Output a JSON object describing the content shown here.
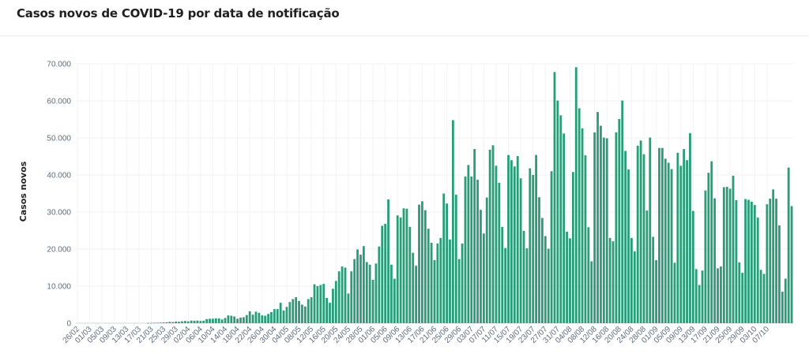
{
  "header": {
    "title": "Casos novos de COVID-19 por data de notificação"
  },
  "chart_data": {
    "type": "bar",
    "title": "Casos novos de COVID-19 por data de notificação",
    "xlabel": "",
    "ylabel": "Casos novos",
    "ylim": [
      0,
      70000
    ],
    "y_ticks": [
      "0",
      "10.000",
      "20.000",
      "30.000",
      "40.000",
      "50.000",
      "60.000",
      "70.000"
    ],
    "y_tick_values": [
      0,
      10000,
      20000,
      30000,
      40000,
      50000,
      60000,
      70000
    ],
    "x_tick_labels": [
      "26/02",
      "01/03",
      "05/03",
      "09/03",
      "13/03",
      "17/03",
      "21/03",
      "25/03",
      "29/03",
      "02/04",
      "06/04",
      "10/04",
      "14/04",
      "18/04",
      "22/04",
      "26/04",
      "30/04",
      "04/05",
      "08/05",
      "12/05",
      "16/05",
      "20/05",
      "24/05",
      "28/05",
      "01/06",
      "05/06",
      "09/06",
      "13/06",
      "17/06",
      "21/06",
      "25/06",
      "29/06",
      "03/07",
      "07/07",
      "11/07",
      "15/07",
      "19/07",
      "23/07",
      "27/07",
      "31/07",
      "04/08",
      "08/08",
      "12/08",
      "16/08",
      "20/08",
      "24/08",
      "28/08",
      "01/09",
      "05/09",
      "09/09",
      "13/09",
      "17/09",
      "21/09",
      "25/09",
      "29/09",
      "03/10",
      "07/10"
    ],
    "grid": true,
    "bar_color": "#2a9d78",
    "series": [
      {
        "values": [
          0,
          0,
          0,
          0,
          0,
          0,
          0,
          0,
          0,
          0,
          0,
          0,
          0,
          0,
          0,
          0,
          0,
          0,
          0,
          0,
          0,
          0,
          0,
          50,
          60,
          100,
          120,
          150,
          200,
          250,
          350,
          300,
          450,
          400,
          500,
          600,
          500,
          700,
          650,
          700,
          600,
          650,
          1100,
          1200,
          1200,
          1300,
          1300,
          1000,
          1400,
          2100,
          2000,
          1800,
          1200,
          1500,
          1600,
          2200,
          3200,
          2300,
          3100,
          2800,
          2100,
          2000,
          2500,
          3000,
          3800,
          3800,
          5500,
          3400,
          4400,
          5700,
          6500,
          7000,
          6000,
          5000,
          4500,
          6500,
          7000,
          10500,
          10000,
          10300,
          10600,
          6800,
          5500,
          9300,
          11400,
          14000,
          15300,
          15000,
          8000,
          14000,
          17300,
          19900,
          18500,
          20800,
          16500,
          15800,
          11700,
          16100,
          20700,
          26300,
          26800,
          33400,
          15800,
          12000,
          29100,
          28500,
          31000,
          30900,
          26000,
          19000,
          15500,
          32000,
          32900,
          30500,
          25500,
          21700,
          17000,
          21500,
          23000,
          35000,
          32300,
          22600,
          54800,
          34700,
          17300,
          21500,
          39600,
          42700,
          39600,
          47000,
          38700,
          30600,
          24200,
          33900,
          46800,
          48000,
          42500,
          37900,
          26000,
          20300,
          45400,
          44000,
          42300,
          45100,
          39100,
          24900,
          20200,
          41800,
          40000,
          45400,
          34000,
          28400,
          23500,
          20100,
          41000,
          67800,
          60100,
          56100,
          51200,
          24700,
          22900,
          40800,
          69100,
          58000,
          52600,
          45300,
          25900,
          16700,
          51500,
          57000,
          53300,
          50100,
          49900,
          23000,
          22100,
          51500,
          55100,
          60100,
          46500,
          41500,
          23000,
          19400,
          47900,
          49300,
          45600,
          30400,
          50100,
          23300,
          17000,
          47300,
          47300,
          44400,
          43300,
          41600,
          16300,
          46000,
          42500,
          47000,
          44000,
          51300,
          30300,
          14600,
          10300,
          14200,
          35800,
          40600,
          43700,
          33700,
          14800,
          15300,
          36700,
          36800,
          36300,
          39800,
          33200,
          16400,
          13600,
          33500,
          33300,
          32800,
          31900,
          28500,
          14400,
          13300,
          32100,
          33600,
          36100,
          33600,
          26400,
          8500,
          12000,
          42000,
          31600
        ]
      }
    ]
  }
}
